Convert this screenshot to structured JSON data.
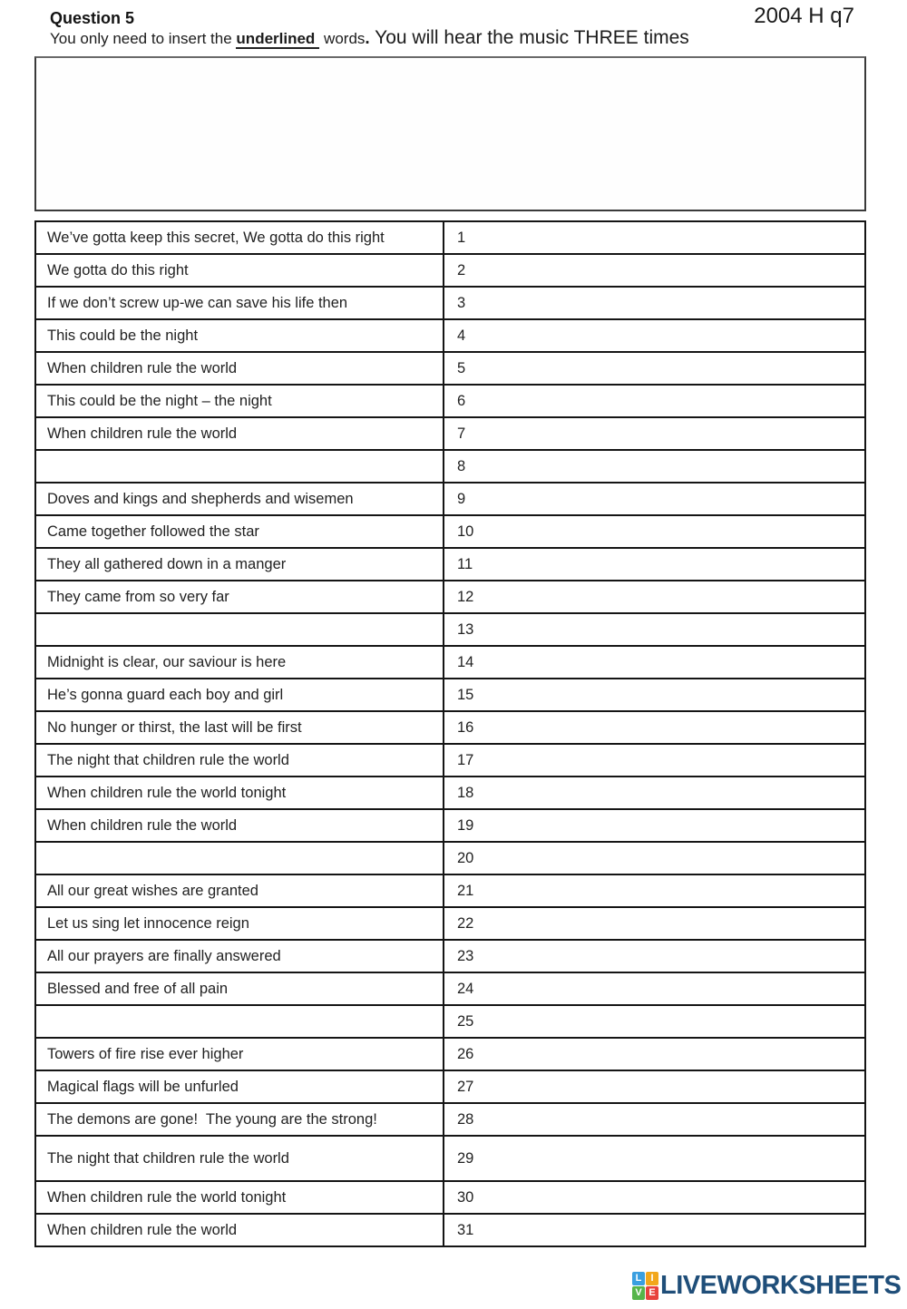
{
  "header": {
    "question_label": "Question 5",
    "exam_ref": "2004 H q7",
    "instruction": {
      "prefix": "You only need to insert the ",
      "underlined": "underlined",
      "after": " words",
      "period": ".",
      "large": " You will hear the music THREE times"
    }
  },
  "rows": [
    {
      "num": "1",
      "text": "We’ve gotta keep this secret, We gotta do this right"
    },
    {
      "num": "2",
      "text": "We gotta do this right"
    },
    {
      "num": "3",
      "text": "If we don’t screw up-we can save his life then"
    },
    {
      "num": "4",
      "text": "This could be the night"
    },
    {
      "num": "5",
      "text": "When children rule the world"
    },
    {
      "num": "6",
      "text": "This could be the night – the night"
    },
    {
      "num": "7",
      "text": "When children rule the world"
    },
    {
      "num": "8",
      "text": ""
    },
    {
      "num": "9",
      "text": "Doves and kings and shepherds and wisemen"
    },
    {
      "num": "10",
      "text": "Came together followed the star"
    },
    {
      "num": "11",
      "text": "They all gathered down in a manger"
    },
    {
      "num": "12",
      "text": "They came from so very far"
    },
    {
      "num": "13",
      "text": ""
    },
    {
      "num": "14",
      "text": "Midnight is clear, our saviour is here"
    },
    {
      "num": "15",
      "text": "He’s gonna guard each boy and girl"
    },
    {
      "num": "16",
      "text": "No hunger or thirst, the last will be first"
    },
    {
      "num": "17",
      "text": "The night that children rule the world"
    },
    {
      "num": "18",
      "text": "When children rule the world tonight"
    },
    {
      "num": "19",
      "text": "When children rule the world"
    },
    {
      "num": "20",
      "text": ""
    },
    {
      "num": "21",
      "text": "All our great wishes are granted"
    },
    {
      "num": "22",
      "text": "Let us sing let innocence reign"
    },
    {
      "num": "23",
      "text": "All our prayers are finally answered"
    },
    {
      "num": "24",
      "text": "Blessed and free of all pain"
    },
    {
      "num": "25",
      "text": ""
    },
    {
      "num": "26",
      "text": "Towers of fire rise ever higher"
    },
    {
      "num": "27",
      "text": "Magical flags will be unfurled"
    },
    {
      "num": "28",
      "text": "The demons are gone!  The young are the strong!"
    },
    {
      "num": "29",
      "text": "The night that children rule the world",
      "tall": true
    },
    {
      "num": "30",
      "text": "When children rule the world tonight"
    },
    {
      "num": "31",
      "text": "When children rule the world"
    }
  ],
  "logo": {
    "brand": "LIVEWORKSHEETS",
    "text_color": "#1f4e79",
    "tiles": [
      {
        "letter": "L",
        "color": "#3a9fe0"
      },
      {
        "letter": "I",
        "color": "#f2a71b"
      },
      {
        "letter": "V",
        "color": "#56b54a"
      },
      {
        "letter": "E",
        "color": "#e8413c"
      }
    ]
  }
}
